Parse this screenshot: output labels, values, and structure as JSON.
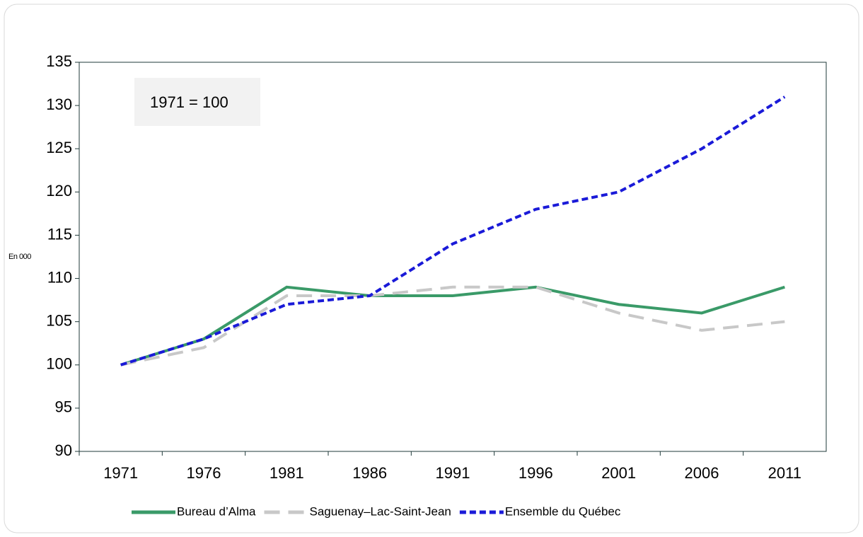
{
  "chart_data": {
    "type": "line",
    "annotation": "1971 = 100",
    "ylabel": "En 000",
    "categories": [
      "1971",
      "1976",
      "1981",
      "1986",
      "1991",
      "1996",
      "2001",
      "2006",
      "2011"
    ],
    "series": [
      {
        "name": "Bureau d’Alma",
        "color": "#3a9a68",
        "dash": "solid",
        "values": [
          100,
          103,
          109,
          108,
          108,
          109,
          107,
          106,
          109
        ]
      },
      {
        "name": "Saguenay–Lac-Saint-Jean",
        "color": "#c8c8c8",
        "dash": "long",
        "values": [
          100,
          102,
          108,
          108,
          109,
          109,
          106,
          104,
          105
        ]
      },
      {
        "name": "Ensemble du Québec",
        "color": "#1a1ad8",
        "dash": "short",
        "values": [
          100,
          103,
          107,
          108,
          114,
          118,
          120,
          125,
          131
        ]
      }
    ],
    "ylim": [
      90,
      135
    ],
    "yticks": [
      90,
      95,
      100,
      105,
      110,
      115,
      120,
      125,
      130,
      135
    ],
    "grid": false,
    "legend": "bottom"
  }
}
